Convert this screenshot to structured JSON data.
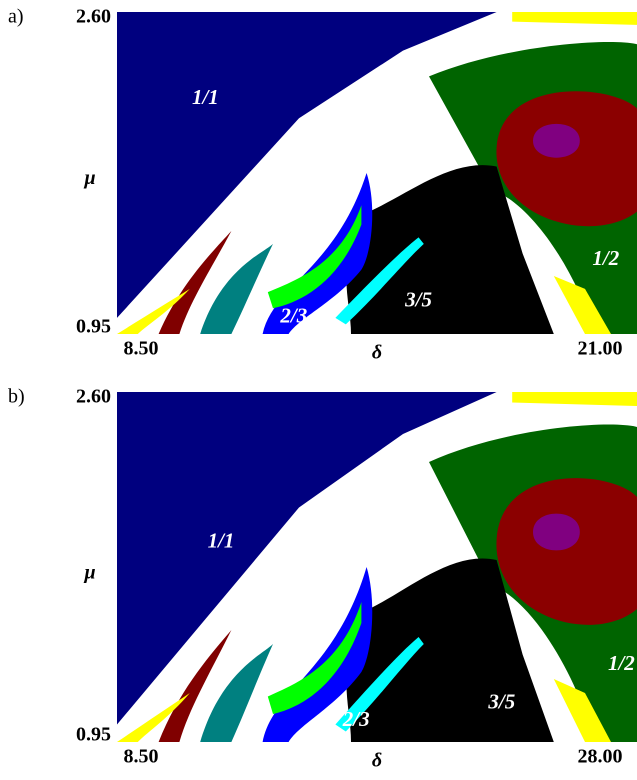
{
  "chart_data": [
    {
      "type": "region-map",
      "panel_label": "a)",
      "xlabel": "δ",
      "ylabel": "μ",
      "xlim": [
        8.5,
        21.0
      ],
      "ylim": [
        0.95,
        2.6
      ],
      "xticks": [
        {
          "value": 8.5,
          "label": "8.50"
        },
        {
          "value": 21.0,
          "label": "21.00"
        }
      ],
      "yticks": [
        {
          "value": 0.95,
          "label": "0.95"
        },
        {
          "value": 2.6,
          "label": "2.60"
        }
      ],
      "annotations": [
        "1/1",
        "2/3",
        "3/5",
        "1/2"
      ]
    },
    {
      "type": "region-map",
      "panel_label": "b)",
      "xlabel": "δ",
      "ylabel": "μ",
      "xlim": [
        8.5,
        28.0
      ],
      "ylim": [
        0.95,
        2.6
      ],
      "xticks": [
        {
          "value": 8.5,
          "label": "8.50"
        },
        {
          "value": 28.0,
          "label": "28.00"
        }
      ],
      "yticks": [
        {
          "value": 0.95,
          "label": "0.95"
        },
        {
          "value": 2.6,
          "label": "2.60"
        }
      ],
      "annotations": [
        "1/1",
        "2/3",
        "3/5",
        "1/2"
      ]
    }
  ]
}
